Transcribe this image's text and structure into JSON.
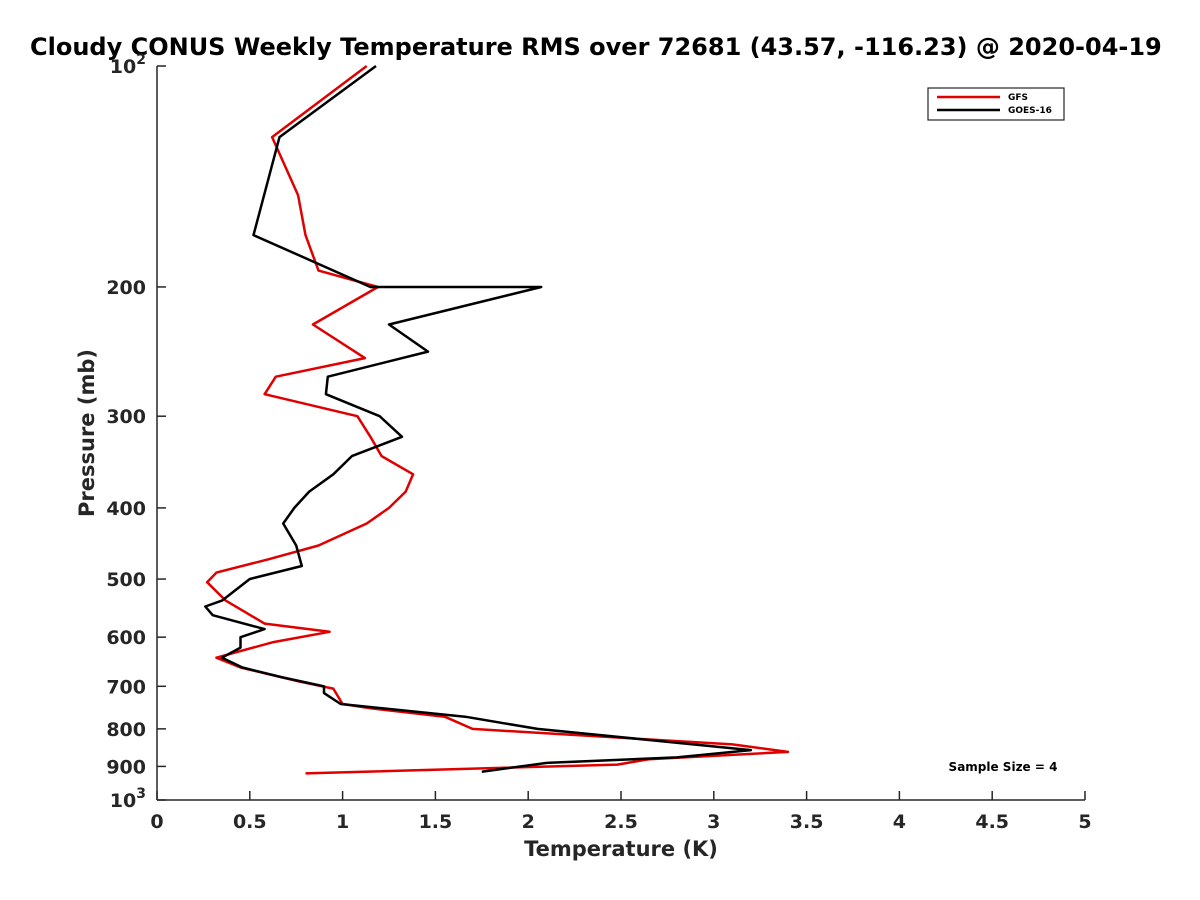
{
  "chart_data": {
    "type": "line",
    "title": "Cloudy CONUS Weekly Temperature RMS over 72681 (43.57, -116.23) @ 2020-04-19",
    "xlabel": "Temperature (K)",
    "ylabel": "Pressure (mb)",
    "xlim": [
      0,
      5
    ],
    "ylim": [
      100,
      1000
    ],
    "y_scale": "log",
    "y_reversed": true,
    "grid": false,
    "legend_position": "top-right",
    "x_ticks": [
      "0",
      "0.5",
      "1",
      "1.5",
      "2",
      "2.5",
      "3",
      "3.5",
      "4",
      "4.5",
      "5"
    ],
    "y_ticks": [
      {
        "value": 100,
        "base": "10",
        "exp": "2"
      },
      {
        "value": 200,
        "label": "200"
      },
      {
        "value": 300,
        "label": "300"
      },
      {
        "value": 400,
        "label": "400"
      },
      {
        "value": 500,
        "label": "500"
      },
      {
        "value": 600,
        "label": "600"
      },
      {
        "value": 700,
        "label": "700"
      },
      {
        "value": 800,
        "label": "800"
      },
      {
        "value": 900,
        "label": "900"
      },
      {
        "value": 1000,
        "base": "10",
        "exp": "3"
      }
    ],
    "annotation": "Sample Size = 4",
    "series": [
      {
        "name": "GFS",
        "color": "#e00000",
        "points": [
          [
            1.13,
            100
          ],
          [
            0.62,
            125
          ],
          [
            0.76,
            150
          ],
          [
            0.8,
            170
          ],
          [
            0.87,
            190
          ],
          [
            1.19,
            200
          ],
          [
            0.84,
            225
          ],
          [
            1.12,
            250
          ],
          [
            0.64,
            265
          ],
          [
            0.58,
            280
          ],
          [
            1.08,
            300
          ],
          [
            1.15,
            320
          ],
          [
            1.21,
            340
          ],
          [
            1.38,
            360
          ],
          [
            1.34,
            380
          ],
          [
            1.25,
            400
          ],
          [
            1.13,
            420
          ],
          [
            0.87,
            450
          ],
          [
            0.6,
            470
          ],
          [
            0.32,
            490
          ],
          [
            0.27,
            505
          ],
          [
            0.37,
            535
          ],
          [
            0.58,
            575
          ],
          [
            0.93,
            590
          ],
          [
            0.62,
            610
          ],
          [
            0.32,
            640
          ],
          [
            0.45,
            660
          ],
          [
            0.77,
            690
          ],
          [
            0.95,
            705
          ],
          [
            1.0,
            740
          ],
          [
            1.15,
            750
          ],
          [
            1.55,
            770
          ],
          [
            1.7,
            800
          ],
          [
            3.1,
            840
          ],
          [
            3.4,
            860
          ],
          [
            2.65,
            880
          ],
          [
            2.48,
            895
          ],
          [
            0.8,
            920
          ]
        ]
      },
      {
        "name": "GOES-16",
        "color": "#000000",
        "points": [
          [
            1.18,
            100
          ],
          [
            0.66,
            125
          ],
          [
            0.52,
            170
          ],
          [
            1.15,
            200
          ],
          [
            2.07,
            200
          ],
          [
            1.25,
            225
          ],
          [
            1.46,
            245
          ],
          [
            0.92,
            265
          ],
          [
            0.91,
            280
          ],
          [
            1.2,
            300
          ],
          [
            1.32,
            320
          ],
          [
            1.05,
            340
          ],
          [
            0.95,
            360
          ],
          [
            0.82,
            380
          ],
          [
            0.74,
            400
          ],
          [
            0.68,
            420
          ],
          [
            0.75,
            450
          ],
          [
            0.78,
            480
          ],
          [
            0.5,
            500
          ],
          [
            0.35,
            535
          ],
          [
            0.26,
            545
          ],
          [
            0.3,
            560
          ],
          [
            0.58,
            585
          ],
          [
            0.45,
            600
          ],
          [
            0.45,
            620
          ],
          [
            0.35,
            640
          ],
          [
            0.46,
            660
          ],
          [
            0.67,
            680
          ],
          [
            0.9,
            700
          ],
          [
            0.9,
            715
          ],
          [
            0.99,
            740
          ],
          [
            1.66,
            770
          ],
          [
            2.05,
            800
          ],
          [
            3.2,
            855
          ],
          [
            2.8,
            875
          ],
          [
            2.1,
            890
          ],
          [
            1.75,
            915
          ]
        ]
      }
    ]
  }
}
